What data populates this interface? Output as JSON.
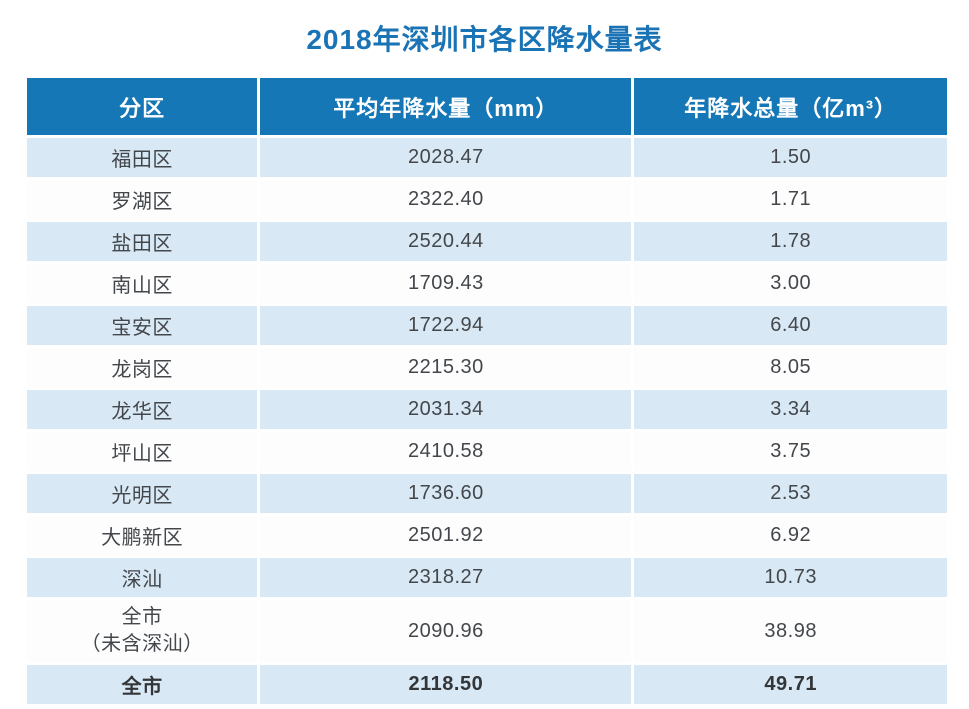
{
  "page": {
    "title": "2018年深圳市各区降水量表"
  },
  "colors": {
    "title_text": "#1a73b4",
    "header_bg": "#1577b5",
    "header_text": "#ffffff",
    "row_alt_bg": "#d8e8f5",
    "row_plain_bg": "#fdfdfe",
    "body_text": "#43474b"
  },
  "table": {
    "headers": [
      "分区",
      "平均年降水量（mm）",
      "年降水总量（亿m³）"
    ],
    "rows": [
      {
        "district": "福田区",
        "avg_mm": "2028.47",
        "total_yi_m3": "1.50"
      },
      {
        "district": "罗湖区",
        "avg_mm": "2322.40",
        "total_yi_m3": "1.71"
      },
      {
        "district": "盐田区",
        "avg_mm": "2520.44",
        "total_yi_m3": "1.78"
      },
      {
        "district": "南山区",
        "avg_mm": "1709.43",
        "total_yi_m3": "3.00"
      },
      {
        "district": "宝安区",
        "avg_mm": "1722.94",
        "total_yi_m3": "6.40"
      },
      {
        "district": "龙岗区",
        "avg_mm": "2215.30",
        "total_yi_m3": "8.05"
      },
      {
        "district": "龙华区",
        "avg_mm": "2031.34",
        "total_yi_m3": "3.34"
      },
      {
        "district": "坪山区",
        "avg_mm": "2410.58",
        "total_yi_m3": "3.75"
      },
      {
        "district": "光明区",
        "avg_mm": "1736.60",
        "total_yi_m3": "2.53"
      },
      {
        "district": "大鹏新区",
        "avg_mm": "2501.92",
        "total_yi_m3": "6.92"
      },
      {
        "district": "深汕",
        "avg_mm": "2318.27",
        "total_yi_m3": "10.73"
      },
      {
        "district": "全市\n（未含深汕）",
        "avg_mm": "2090.96",
        "total_yi_m3": "38.98"
      },
      {
        "district": "全市",
        "avg_mm": "2118.50",
        "total_yi_m3": "49.71"
      }
    ]
  }
}
